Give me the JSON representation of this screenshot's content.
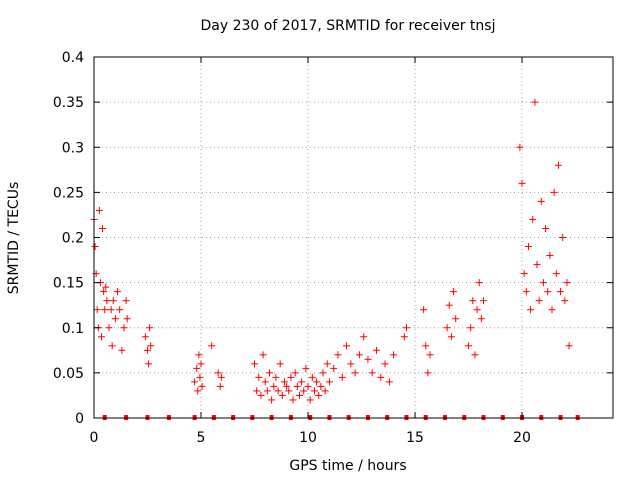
{
  "chart_data": {
    "type": "scatter",
    "title": "Day 230 of 2017, SRMTID for receiver tnsj",
    "xlabel": "GPS time / hours",
    "ylabel": "SRMTID / TECUs",
    "xlim": [
      0,
      24.25
    ],
    "ylim": [
      0,
      0.4
    ],
    "x_ticks": [
      0,
      5,
      10,
      15,
      20
    ],
    "x_tick_labels": [
      "0",
      "5",
      "10",
      "15",
      "20"
    ],
    "y_ticks": [
      0,
      0.05,
      0.1,
      0.15,
      0.2,
      0.25,
      0.3,
      0.35,
      0.4
    ],
    "y_tick_labels": [
      "0",
      "0.05",
      "0.1",
      "0.15",
      "0.2",
      "0.25",
      "0.3",
      "0.35",
      "0.4"
    ],
    "grid": true,
    "legend": "none",
    "marker": "plus",
    "color": "#ff0000",
    "series": [
      {
        "values_x": [
          0.0,
          0.05,
          0.1,
          0.15,
          0.2,
          0.25,
          0.3,
          0.35,
          0.4,
          0.45,
          0.5,
          0.55,
          0.6,
          0.7,
          0.8,
          0.85,
          0.9,
          1.0,
          1.1,
          1.2,
          1.3,
          1.4,
          1.5,
          1.55,
          2.4,
          2.5,
          2.55,
          2.6,
          2.65,
          4.7,
          4.8,
          4.85,
          4.9,
          4.95,
          5.0,
          5.05,
          5.5,
          5.8,
          5.9,
          5.95,
          7.5,
          7.6,
          7.7,
          7.8,
          7.9,
          8.0,
          8.1,
          8.2,
          8.3,
          8.4,
          8.5,
          8.6,
          8.7,
          8.8,
          8.9,
          9.0,
          9.1,
          9.2,
          9.3,
          9.4,
          9.5,
          9.6,
          9.7,
          9.8,
          9.9,
          10.0,
          10.1,
          10.2,
          10.3,
          10.4,
          10.5,
          10.6,
          10.7,
          10.8,
          10.9,
          11.0,
          11.2,
          11.4,
          11.6,
          11.8,
          12.0,
          12.2,
          12.4,
          12.6,
          12.8,
          13.0,
          13.2,
          13.4,
          13.6,
          13.8,
          14.0,
          14.5,
          14.6,
          15.4,
          15.5,
          15.6,
          15.7,
          16.5,
          16.6,
          16.7,
          16.8,
          16.9,
          17.5,
          17.6,
          17.7,
          17.8,
          17.9,
          18.0,
          18.1,
          18.2,
          19.9,
          20.0,
          20.1,
          20.2,
          20.3,
          20.4,
          20.5,
          20.6,
          20.7,
          20.8,
          20.9,
          21.0,
          21.1,
          21.2,
          21.3,
          21.4,
          21.5,
          21.6,
          21.7,
          21.8,
          21.9,
          22.0,
          22.1,
          22.2
        ],
        "values_y": [
          0.22,
          0.19,
          0.16,
          0.12,
          0.1,
          0.23,
          0.15,
          0.09,
          0.21,
          0.14,
          0.12,
          0.145,
          0.13,
          0.1,
          0.12,
          0.08,
          0.13,
          0.11,
          0.14,
          0.12,
          0.075,
          0.1,
          0.13,
          0.11,
          0.09,
          0.075,
          0.06,
          0.1,
          0.08,
          0.04,
          0.055,
          0.03,
          0.07,
          0.045,
          0.06,
          0.035,
          0.08,
          0.05,
          0.035,
          0.045,
          0.06,
          0.03,
          0.045,
          0.025,
          0.07,
          0.04,
          0.03,
          0.05,
          0.02,
          0.035,
          0.045,
          0.03,
          0.06,
          0.025,
          0.04,
          0.035,
          0.03,
          0.045,
          0.02,
          0.05,
          0.035,
          0.025,
          0.04,
          0.03,
          0.055,
          0.035,
          0.02,
          0.045,
          0.03,
          0.04,
          0.025,
          0.035,
          0.05,
          0.03,
          0.06,
          0.04,
          0.055,
          0.07,
          0.045,
          0.08,
          0.06,
          0.05,
          0.07,
          0.09,
          0.065,
          0.05,
          0.075,
          0.045,
          0.06,
          0.04,
          0.07,
          0.09,
          0.1,
          0.12,
          0.08,
          0.05,
          0.07,
          0.1,
          0.125,
          0.09,
          0.14,
          0.11,
          0.08,
          0.1,
          0.13,
          0.07,
          0.12,
          0.15,
          0.11,
          0.13,
          0.3,
          0.26,
          0.16,
          0.14,
          0.19,
          0.12,
          0.22,
          0.35,
          0.17,
          0.13,
          0.24,
          0.15,
          0.21,
          0.14,
          0.18,
          0.12,
          0.25,
          0.16,
          0.28,
          0.14,
          0.2,
          0.13,
          0.15,
          0.08
        ]
      }
    ],
    "zero_band_x": [
      0.5,
      1.5,
      2.5,
      3.5,
      4.7,
      5.6,
      6.5,
      7.4,
      8.3,
      9.2,
      10.1,
      11.0,
      11.9,
      12.8,
      13.7,
      14.6,
      15.5,
      16.4,
      17.3,
      18.2,
      19.1,
      20.0,
      20.9,
      21.8,
      22.6
    ]
  }
}
